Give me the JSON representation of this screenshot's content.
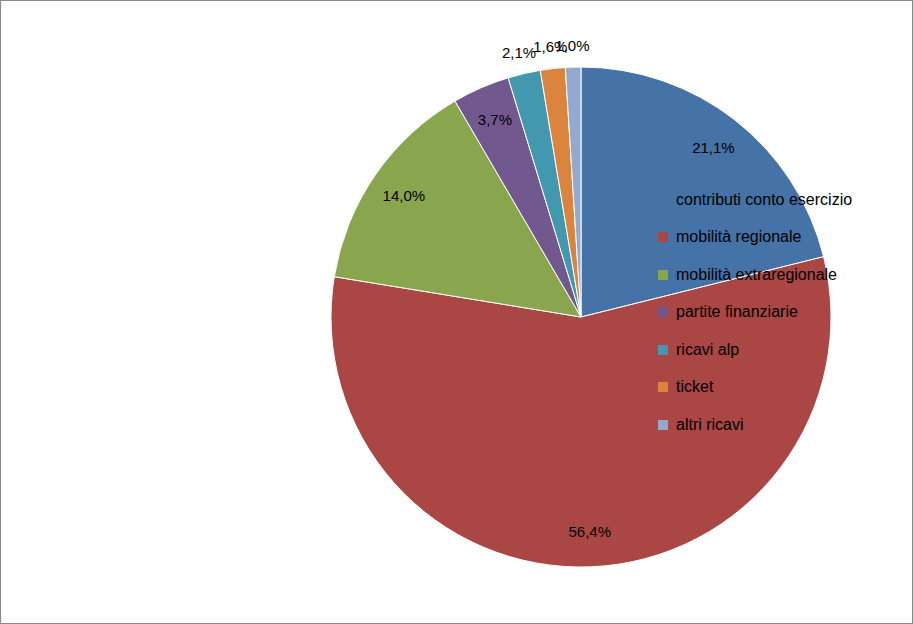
{
  "chart_data": {
    "type": "pie",
    "categories": [
      "contributi conto esercizio",
      "mobilità regionale",
      "mobilità extraregionale",
      "partite finanziarie",
      "ricavi alp",
      "ticket",
      "altri ricavi"
    ],
    "values": [
      21.1,
      56.4,
      14.0,
      3.7,
      2.1,
      1.6,
      1.0
    ],
    "value_labels": [
      "21,1%",
      "56,4%",
      "14,0%",
      "3,7%",
      "2,1%",
      "1,6%",
      "1,0%"
    ],
    "colors": [
      "#4572A7",
      "#AA4643",
      "#89A54E",
      "#71588F",
      "#4198AF",
      "#DB843D",
      "#93A9CF"
    ],
    "data_labels": true,
    "legend": "right"
  }
}
